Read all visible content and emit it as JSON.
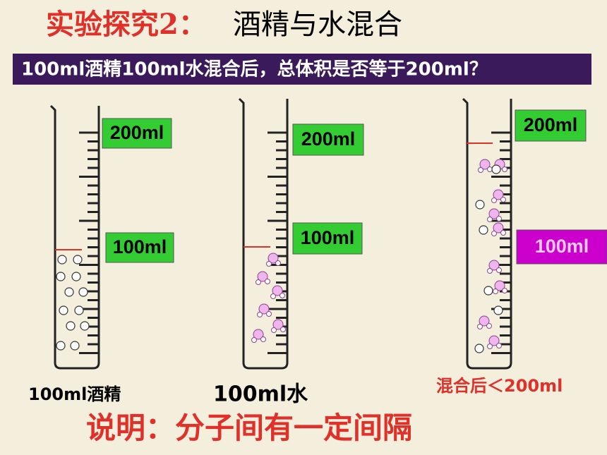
{
  "title": {
    "label": "实验探究2：",
    "topic": "酒精与水混合"
  },
  "question": "100ml酒精100ml水混合后，总体积是否等于200ml？",
  "cylinders": [
    {
      "top_label": "200ml",
      "mid_label": "100ml",
      "caption": "100ml酒精"
    },
    {
      "top_label": "200ml",
      "mid_label": "100ml",
      "caption": "100ml水"
    },
    {
      "top_label": "200ml",
      "mid_label": "100ml",
      "caption": "混合后＜200ml"
    }
  ],
  "conclusion": "说明：分子间有一定间隔"
}
